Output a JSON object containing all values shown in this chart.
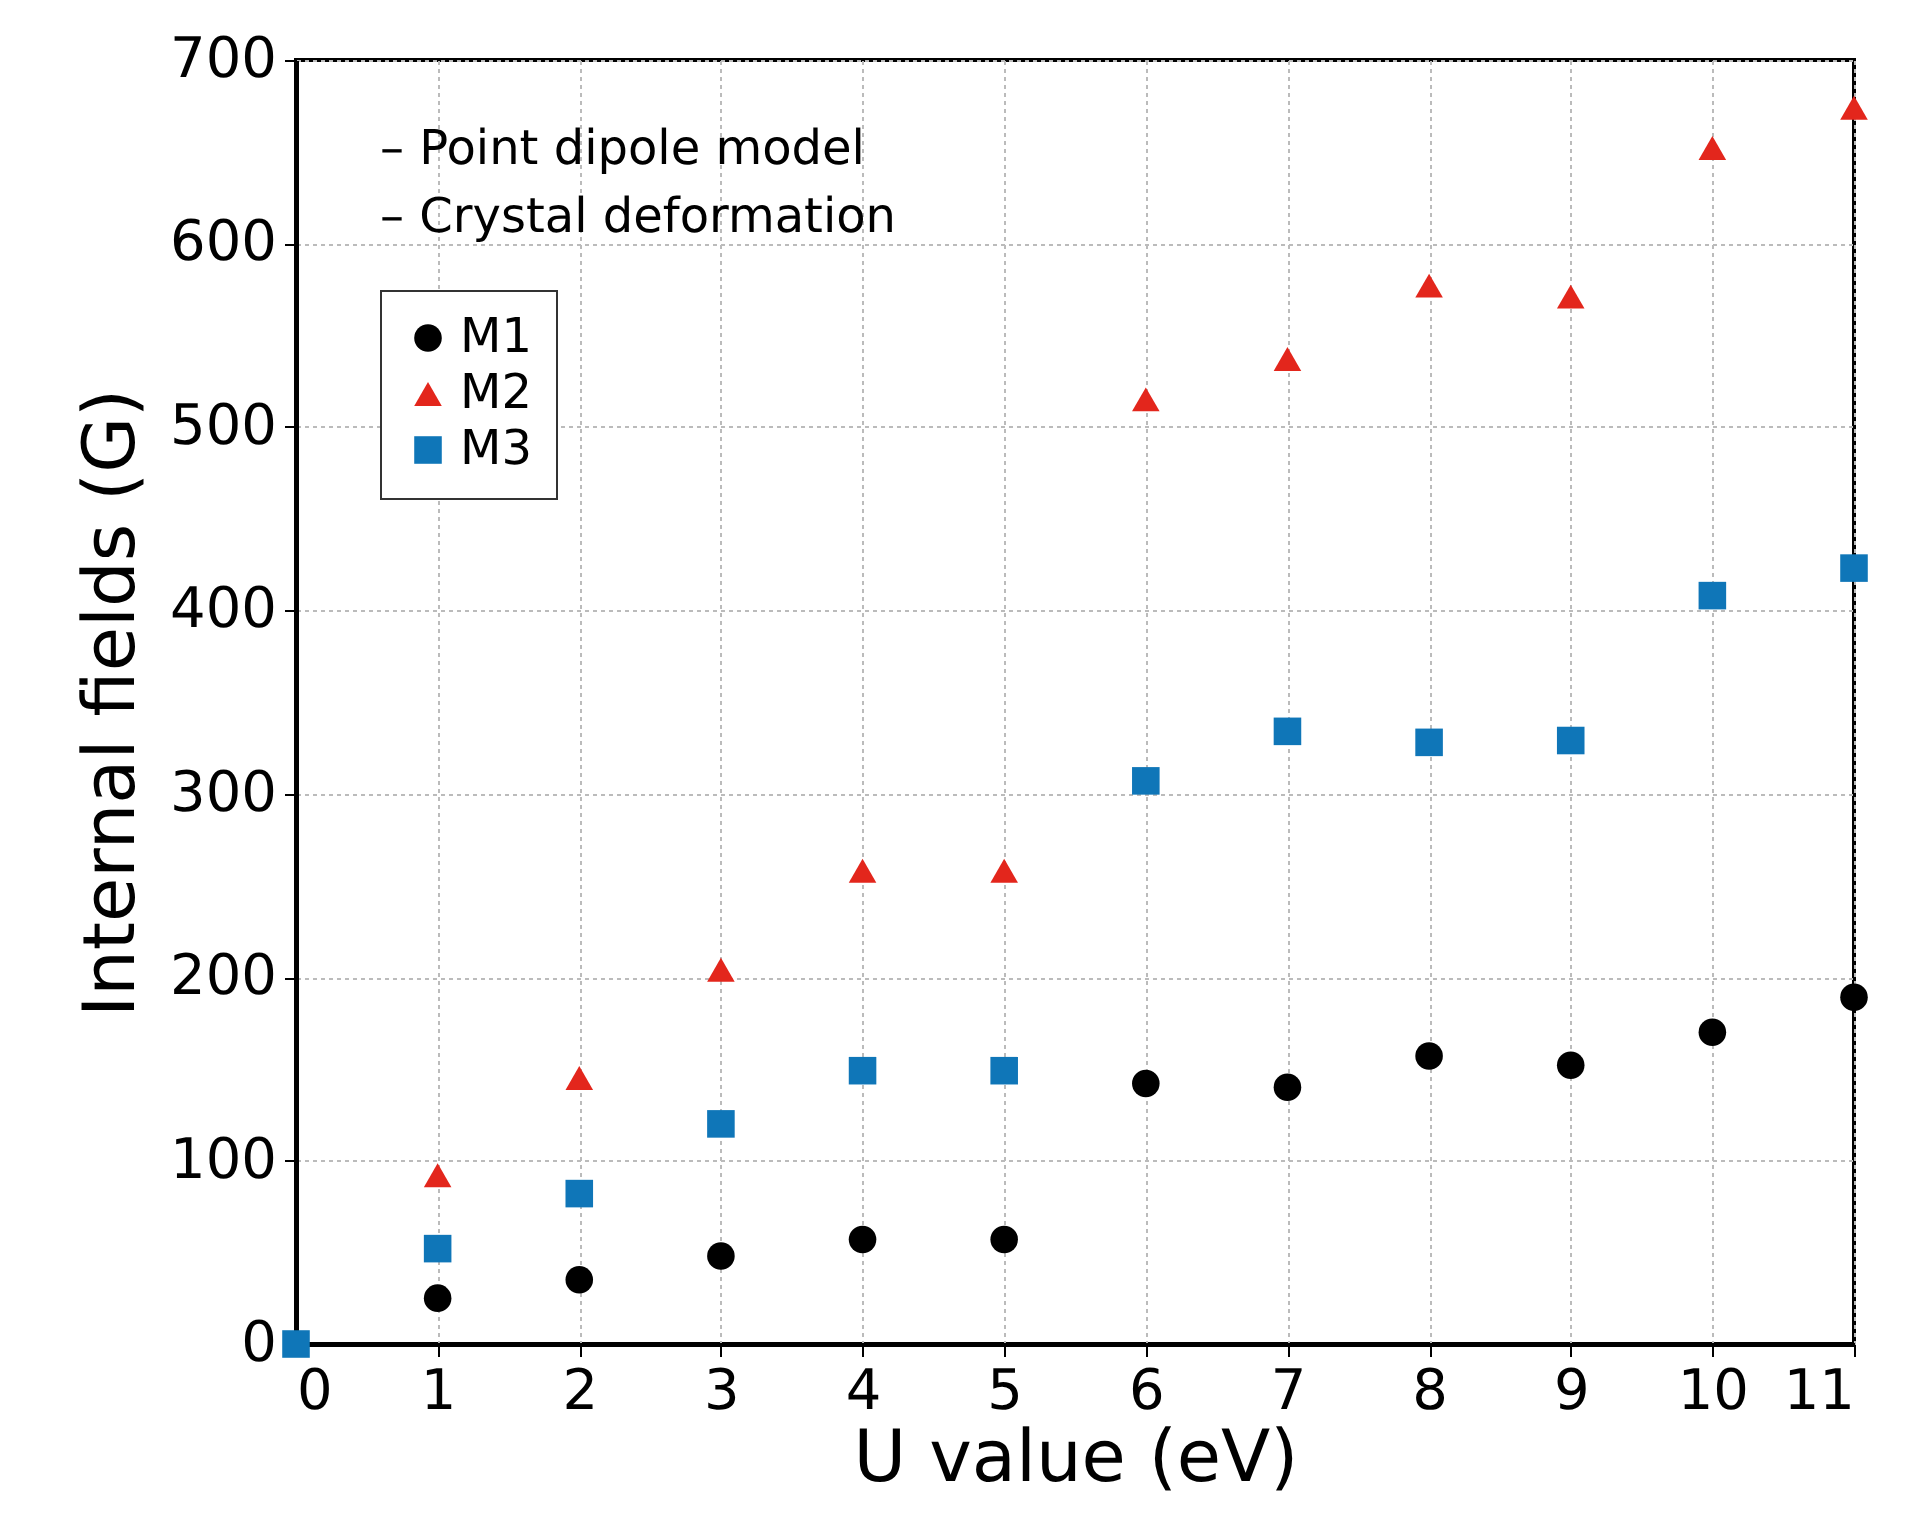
{
  "chart_data": {
    "type": "scatter",
    "xlabel": "U value (eV)",
    "ylabel": "Internal fields (G)",
    "annotations": [
      "– Point dipole model",
      "– Crystal deformation"
    ],
    "xlim": [
      0,
      11
    ],
    "xticks": [
      0,
      1,
      2,
      3,
      4,
      5,
      6,
      7,
      8,
      9,
      10,
      11
    ],
    "ylim": [
      0,
      700
    ],
    "yticks": [
      0,
      100,
      200,
      300,
      400,
      500,
      600,
      700
    ],
    "grid": true,
    "legend": "top left",
    "series": [
      {
        "name": "M1",
        "color": "#000000",
        "marker": "circle",
        "x": [
          1,
          2,
          3,
          4,
          5,
          6,
          7,
          8,
          9,
          10,
          11
        ],
        "values": [
          25,
          35,
          48,
          57,
          57,
          142,
          140,
          157,
          152,
          170,
          189
        ]
      },
      {
        "name": "M2",
        "color": "#e3261c",
        "marker": "triangle",
        "x": [
          1,
          2,
          3,
          4,
          5,
          6,
          7,
          8,
          9,
          10,
          11
        ],
        "values": [
          92,
          145,
          204,
          258,
          258,
          515,
          537,
          577,
          571,
          652,
          674
        ]
      },
      {
        "name": "M3",
        "color": "#0f76b8",
        "marker": "square",
        "x": [
          0,
          1,
          2,
          3,
          4,
          5,
          6,
          7,
          8,
          9,
          10,
          11
        ],
        "values": [
          0,
          52,
          82,
          120,
          149,
          149,
          307,
          334,
          328,
          329,
          408,
          423
        ]
      }
    ]
  }
}
